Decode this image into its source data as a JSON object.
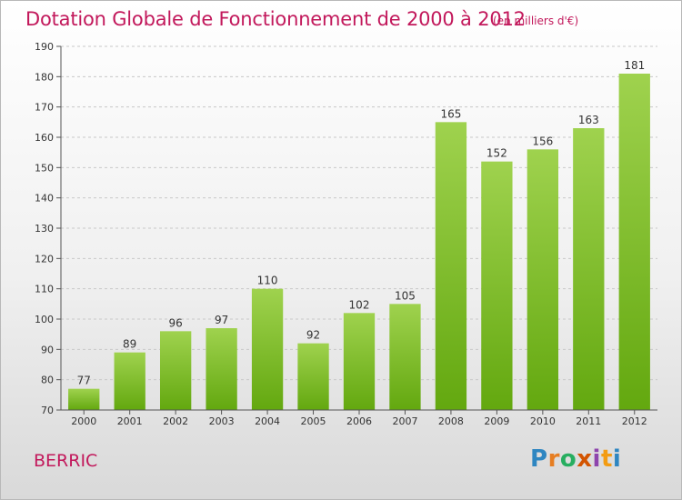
{
  "header": {
    "title": "Dotation Globale de Fonctionnement de 2000 à 2012",
    "unit": "(en milliers d'€)"
  },
  "commune": "BERRIC",
  "logo": {
    "letters": [
      "P",
      "r",
      "o",
      "x",
      "i",
      "t",
      "i"
    ],
    "colors": [
      "#2e86c1",
      "#e67e22",
      "#27ae60",
      "#d35400",
      "#8e44ad",
      "#f39c12",
      "#2e86c1"
    ]
  },
  "colors": {
    "bar_top": "#9fd24e",
    "bar_bottom": "#63a80f",
    "title": "#c2185b"
  },
  "chart_data": {
    "type": "bar",
    "categories": [
      "2000",
      "2001",
      "2002",
      "2003",
      "2004",
      "2005",
      "2006",
      "2007",
      "2008",
      "2009",
      "2010",
      "2011",
      "2012"
    ],
    "values": [
      77,
      89,
      96,
      97,
      110,
      92,
      102,
      105,
      165,
      152,
      156,
      163,
      181
    ],
    "title": "Dotation Globale de Fonctionnement de 2000 à 2012",
    "subtitle": "(en milliers d'€)",
    "xlabel": "",
    "ylabel": "",
    "ylim": [
      70,
      190
    ],
    "yticks": [
      70,
      80,
      90,
      100,
      110,
      120,
      130,
      140,
      150,
      160,
      170,
      180,
      190
    ],
    "grid": true,
    "data_labels": true
  }
}
